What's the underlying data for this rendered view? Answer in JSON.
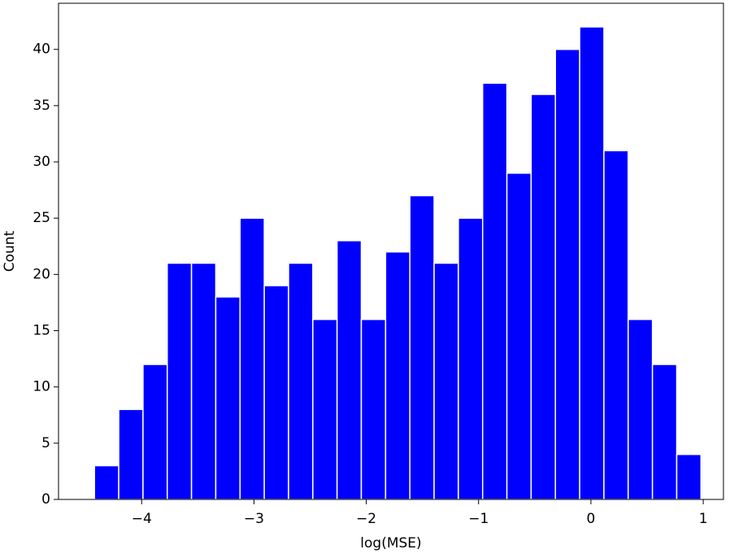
{
  "chart_data": {
    "type": "histogram",
    "xlabel": "log(MSE)",
    "ylabel": "Count",
    "bins": [
      -4.42,
      -4.204,
      -3.988,
      -3.772,
      -3.556,
      -3.34,
      -3.124,
      -2.908,
      -2.692,
      -2.476,
      -2.26,
      -2.044,
      -1.828,
      -1.612,
      -1.396,
      -1.18,
      -0.964,
      -0.748,
      -0.532,
      -0.316,
      -0.1,
      0.116,
      0.332,
      0.548,
      0.764,
      0.98
    ],
    "values": [
      3,
      8,
      12,
      21,
      21,
      18,
      25,
      19,
      21,
      16,
      23,
      16,
      22,
      27,
      21,
      25,
      37,
      29,
      36,
      40,
      42,
      31,
      16,
      12,
      4
    ],
    "color": "#0000ff",
    "edgecolor": "#ffffff",
    "xlim": [
      -4.74,
      1.18
    ],
    "xticks": [
      {
        "value": -4,
        "label": "−4"
      },
      {
        "value": -3,
        "label": "−3"
      },
      {
        "value": -2,
        "label": "−2"
      },
      {
        "value": -1,
        "label": "−1"
      },
      0,
      1
    ],
    "ylim": [
      0,
      44.1
    ],
    "yticks": [
      0,
      5,
      10,
      15,
      20,
      25,
      30,
      35,
      40
    ],
    "grid": false
  }
}
